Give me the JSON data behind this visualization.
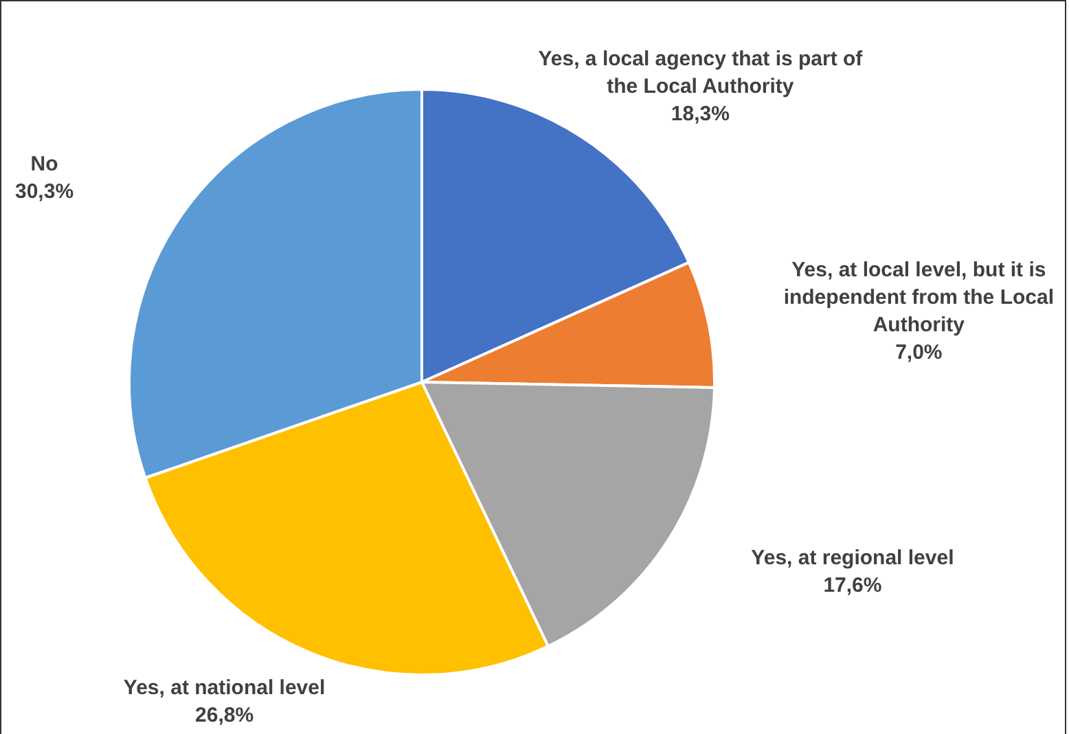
{
  "chart_data": {
    "type": "pie",
    "categories": [
      "Yes, a local agency that is part of the Local Authority",
      "Yes, at local level, but it is independent from the Local Authority",
      "Yes, at regional level",
      "Yes, at national level",
      "No"
    ],
    "values": [
      18.3,
      7.0,
      17.6,
      26.8,
      30.3
    ],
    "value_labels": [
      "18,3%",
      "7,0%",
      "17,6%",
      "26,8%",
      "30,3%"
    ],
    "colors": [
      "#4472c4",
      "#ed7d31",
      "#a5a5a5",
      "#ffc000",
      "#5b9bd5"
    ],
    "legend": false
  }
}
